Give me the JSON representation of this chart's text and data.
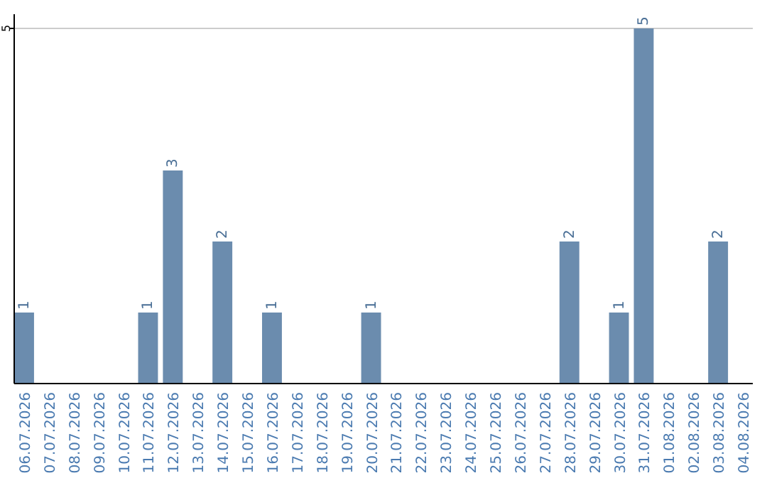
{
  "chart_data": {
    "type": "bar",
    "categories": [
      "06.07.2026",
      "07.07.2026",
      "08.07.2026",
      "09.07.2026",
      "10.07.2026",
      "11.07.2026",
      "12.07.2026",
      "13.07.2026",
      "14.07.2026",
      "15.07.2026",
      "16.07.2026",
      "17.07.2026",
      "18.07.2026",
      "19.07.2026",
      "20.07.2026",
      "21.07.2026",
      "22.07.2026",
      "23.07.2026",
      "24.07.2026",
      "25.07.2026",
      "26.07.2026",
      "27.07.2026",
      "28.07.2026",
      "29.07.2026",
      "30.07.2026",
      "31.07.2026",
      "01.08.2026",
      "02.08.2026",
      "03.08.2026",
      "04.08.2026"
    ],
    "values": [
      1,
      null,
      null,
      null,
      null,
      1,
      3,
      null,
      2,
      null,
      1,
      null,
      null,
      null,
      1,
      null,
      null,
      null,
      null,
      null,
      null,
      null,
      2,
      null,
      1,
      5,
      null,
      null,
      2,
      null
    ],
    "color": "#6b8cae",
    "ylim": [
      0,
      5.2
    ],
    "yticks": [
      5
    ],
    "grid": "y",
    "data_labels": true
  }
}
